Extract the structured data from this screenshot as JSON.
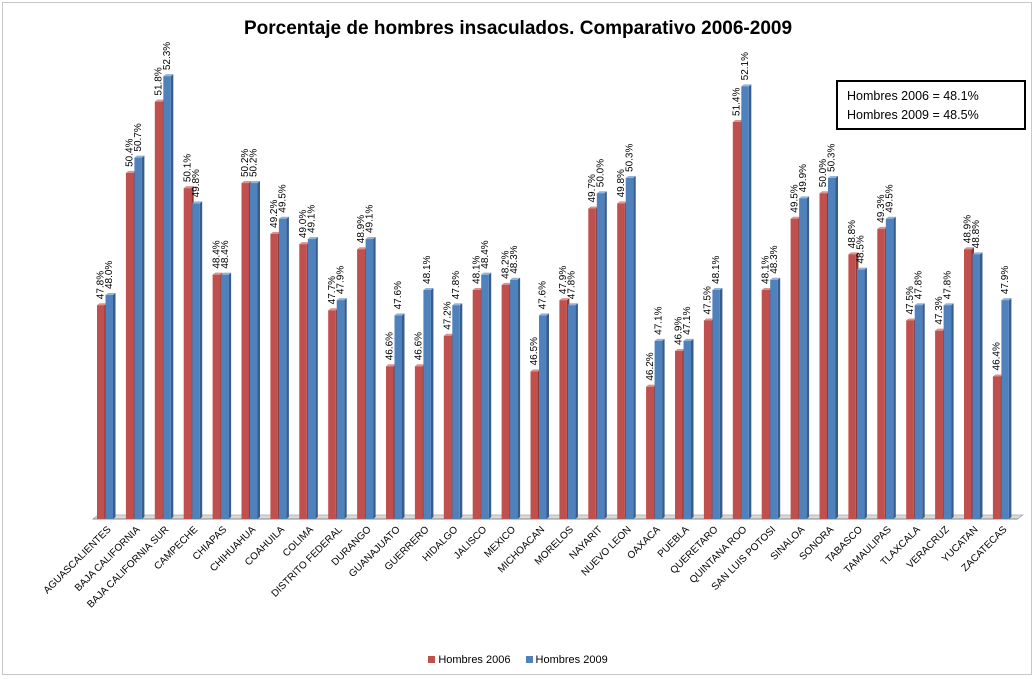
{
  "chart_data": {
    "type": "bar",
    "title": "Porcentaje de hombres insaculados. Comparativo 2006-2009",
    "categories": [
      "AGUASCALIENTES",
      "BAJA CALIFORNIA",
      "BAJA CALIFORNIA SUR",
      "CAMPECHE",
      "CHIAPAS",
      "CHIHUAHUA",
      "COAHUILA",
      "COLIMA",
      "DISTRITO FEDERAL",
      "DURANGO",
      "GUANAJUATO",
      "GUERRERO",
      "HIDALGO",
      "JALISCO",
      "MEXICO",
      "MICHOACAN",
      "MORELOS",
      "NAYARIT",
      "NUEVO LEON",
      "OAXACA",
      "PUEBLA",
      "QUERETARO",
      "QUINTANA ROO",
      "SAN LUIS POTOSI",
      "SINALOA",
      "SONORA",
      "TABASCO",
      "TAMAULIPAS",
      "TLAXCALA",
      "VERACRUZ",
      "YUCATAN",
      "ZACATECAS"
    ],
    "series": [
      {
        "name": "Hombres 2006",
        "color": "#c0504d",
        "values": [
          47.8,
          50.4,
          51.8,
          50.1,
          48.4,
          50.2,
          49.2,
          49.0,
          47.7,
          48.9,
          46.6,
          46.6,
          47.2,
          48.1,
          48.2,
          46.5,
          47.9,
          49.7,
          49.8,
          46.2,
          46.9,
          47.5,
          51.4,
          48.1,
          49.5,
          50.0,
          48.8,
          49.3,
          47.5,
          47.3,
          48.9,
          46.4
        ],
        "labels": [
          "47.8%",
          "50.4%",
          "51.8%",
          "50.1%",
          "48.4%",
          "50.2%",
          "49.2%",
          "49.0%",
          "47.7%",
          "48.9%",
          "46.6%",
          "46.6%",
          "47.2%",
          "48.1%",
          "48.2%",
          "46.5%",
          "47.9%",
          "49.7%",
          "49.8%",
          "46.2%",
          "46.9%",
          "47.5%",
          "51.4%",
          "48.1%",
          "49.5%",
          "50.0%",
          "48.8%",
          "49.3%",
          "47.5%",
          "47.3%",
          "48.9%",
          "46.4%"
        ]
      },
      {
        "name": "Hombres 2009",
        "color": "#4f81bd",
        "values": [
          48.0,
          50.7,
          52.3,
          49.8,
          48.4,
          50.2,
          49.5,
          49.1,
          47.9,
          49.1,
          47.6,
          48.1,
          47.8,
          48.4,
          48.3,
          47.6,
          47.8,
          50.0,
          50.3,
          47.1,
          47.1,
          48.1,
          52.1,
          48.3,
          49.9,
          50.3,
          48.5,
          49.5,
          47.8,
          47.8,
          48.8,
          47.9
        ],
        "labels": [
          "48.0%",
          "50.7%",
          "52.3%",
          "49.8%",
          "48.4%",
          "50.2%",
          "49.5%",
          "49.1%",
          "47.9%",
          "49.1%",
          "47.6%",
          "48.1%",
          "47.8%",
          "48.4%",
          "48.3%",
          "47.6%",
          "47.8%",
          "50.0%",
          "50.3%",
          "47.1%",
          "47.1%",
          "48.1%",
          "52.1%",
          "48.3%",
          "49.9%",
          "50.3%",
          "48.5%",
          "49.5%",
          "47.8%",
          "47.8%",
          "48.8%",
          "47.9%"
        ]
      }
    ],
    "annotation": [
      "Hombres 2006 = 48.1%",
      "Hombres 2009 =  48.5%"
    ],
    "legend_position": "bottom",
    "grid": false
  }
}
